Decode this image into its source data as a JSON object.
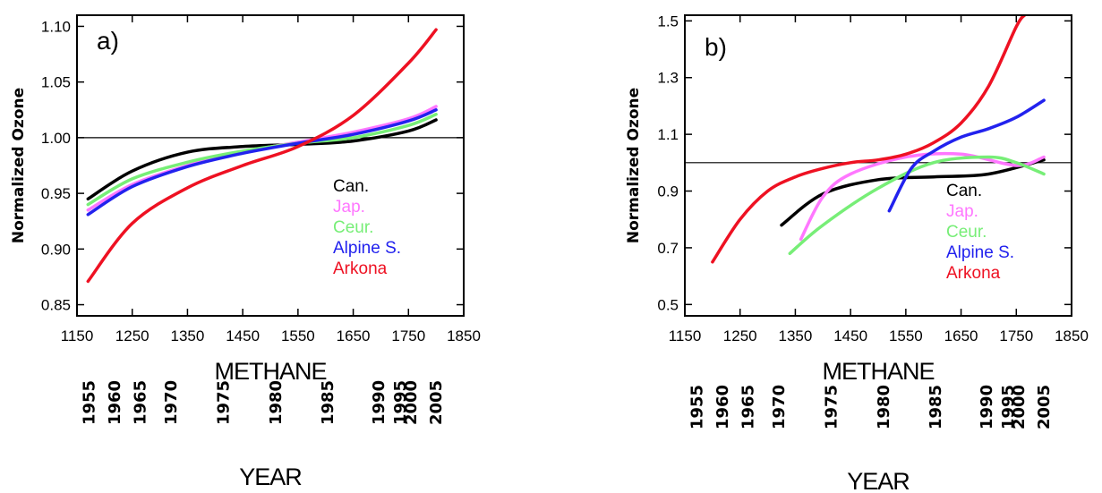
{
  "chart_data": [
    {
      "type": "line",
      "panel_label": "a)",
      "ylabel": "Normalized Ozone",
      "xlabel": "METHANE",
      "year_label": "YEAR",
      "xlim": [
        1150,
        1850
      ],
      "ylim": [
        0.84,
        1.11
      ],
      "xticks": [
        1150,
        1250,
        1350,
        1450,
        1550,
        1650,
        1750,
        1850
      ],
      "yticks": [
        0.85,
        0.9,
        0.95,
        1.0,
        1.05,
        1.1
      ],
      "ytick_labels": [
        "0.85",
        "0.90",
        "0.95",
        "1.00",
        "1.05",
        "1.10"
      ],
      "reference_line": 1.0,
      "year_ticks": [
        {
          "year": "1955",
          "methane": 1172
        },
        {
          "year": "1960",
          "methane": 1218
        },
        {
          "year": "1965",
          "methane": 1264
        },
        {
          "year": "1970",
          "methane": 1320
        },
        {
          "year": "1975",
          "methane": 1415
        },
        {
          "year": "1980",
          "methane": 1510
        },
        {
          "year": "1985",
          "methane": 1604
        },
        {
          "year": "1990",
          "methane": 1696
        },
        {
          "year": "1995",
          "methane": 1745
        },
        {
          "year": "2000",
          "methane": 1745
        },
        {
          "year": "2005",
          "methane": 1800
        }
      ],
      "series": [
        {
          "name": "Can.",
          "color": "#000000",
          "x": [
            1170,
            1250,
            1350,
            1450,
            1550,
            1650,
            1750,
            1800
          ],
          "y": [
            0.945,
            0.97,
            0.987,
            0.992,
            0.994,
            0.997,
            1.006,
            1.016
          ]
        },
        {
          "name": "Jap.",
          "color": "#ff77ff",
          "x": [
            1170,
            1250,
            1350,
            1450,
            1550,
            1650,
            1750,
            1800
          ],
          "y": [
            0.935,
            0.958,
            0.975,
            0.987,
            0.996,
            1.005,
            1.017,
            1.028
          ]
        },
        {
          "name": "Ceur.",
          "color": "#77ee77",
          "x": [
            1170,
            1250,
            1350,
            1450,
            1550,
            1650,
            1750,
            1800
          ],
          "y": [
            0.94,
            0.963,
            0.978,
            0.988,
            0.995,
            1.0,
            1.011,
            1.021
          ]
        },
        {
          "name": "Alpine S.",
          "color": "#2222ee",
          "x": [
            1170,
            1250,
            1350,
            1450,
            1550,
            1650,
            1750,
            1800
          ],
          "y": [
            0.931,
            0.956,
            0.974,
            0.986,
            0.995,
            1.003,
            1.015,
            1.025
          ]
        },
        {
          "name": "Arkona",
          "color": "#ee1122",
          "x": [
            1170,
            1250,
            1350,
            1450,
            1550,
            1650,
            1750,
            1800
          ],
          "y": [
            0.871,
            0.923,
            0.955,
            0.975,
            0.992,
            1.02,
            1.067,
            1.097
          ]
        }
      ]
    },
    {
      "type": "line",
      "panel_label": "b)",
      "ylabel": "Normalized Ozone",
      "xlabel": "METHANE",
      "year_label": "YEAR",
      "xlim": [
        1150,
        1850
      ],
      "ylim": [
        0.46,
        1.52
      ],
      "xticks": [
        1150,
        1250,
        1350,
        1450,
        1550,
        1650,
        1750,
        1850
      ],
      "yticks": [
        0.5,
        0.7,
        0.9,
        1.1,
        1.3,
        1.5
      ],
      "ytick_labels": [
        "0.5",
        "0.7",
        "0.9",
        "1.1",
        "1.3",
        "1.5"
      ],
      "reference_line": 1.0,
      "year_ticks": [
        {
          "year": "1955",
          "methane": 1172
        },
        {
          "year": "1960",
          "methane": 1218
        },
        {
          "year": "1965",
          "methane": 1264
        },
        {
          "year": "1970",
          "methane": 1320
        },
        {
          "year": "1975",
          "methane": 1415
        },
        {
          "year": "1980",
          "methane": 1510
        },
        {
          "year": "1985",
          "methane": 1604
        },
        {
          "year": "1990",
          "methane": 1696
        },
        {
          "year": "1995",
          "methane": 1745
        },
        {
          "year": "2000",
          "methane": 1745
        },
        {
          "year": "2005",
          "methane": 1800
        }
      ],
      "series": [
        {
          "name": "Can.",
          "color": "#000000",
          "x": [
            1325,
            1400,
            1500,
            1600,
            1700,
            1800
          ],
          "y": [
            0.78,
            0.89,
            0.94,
            0.95,
            0.96,
            1.01
          ]
        },
        {
          "name": "Jap.",
          "color": "#ff77ff",
          "x": [
            1360,
            1400,
            1450,
            1550,
            1650,
            1750,
            1800
          ],
          "y": [
            0.73,
            0.88,
            0.96,
            1.02,
            1.03,
            0.99,
            1.02
          ]
        },
        {
          "name": "Ceur.",
          "color": "#77ee77",
          "x": [
            1340,
            1400,
            1500,
            1600,
            1700,
            1750,
            1800
          ],
          "y": [
            0.68,
            0.78,
            0.91,
            1.0,
            1.02,
            1.0,
            0.96
          ]
        },
        {
          "name": "Alpine S.",
          "color": "#2222ee",
          "x": [
            1520,
            1560,
            1600,
            1650,
            1700,
            1750,
            1800
          ],
          "y": [
            0.83,
            0.98,
            1.04,
            1.09,
            1.12,
            1.16,
            1.22
          ]
        },
        {
          "name": "Arkona",
          "color": "#ee1122",
          "x": [
            1200,
            1250,
            1300,
            1350,
            1400,
            1450,
            1500,
            1550,
            1600,
            1650,
            1700,
            1750,
            1765
          ],
          "y": [
            0.65,
            0.8,
            0.9,
            0.95,
            0.98,
            1.0,
            1.01,
            1.03,
            1.07,
            1.14,
            1.27,
            1.48,
            1.52
          ]
        }
      ]
    }
  ]
}
